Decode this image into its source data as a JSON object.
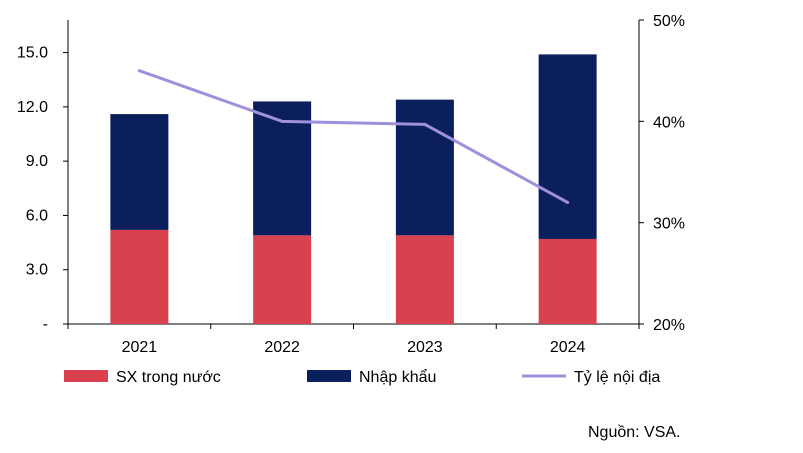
{
  "chart_data": {
    "type": "bar",
    "stacked": true,
    "categories": [
      "2021",
      "2022",
      "2023",
      "2024"
    ],
    "series": [
      {
        "name": "SX trong nước",
        "kind": "bar",
        "axis": "left",
        "color": "#d9414f",
        "values": [
          5.2,
          4.9,
          4.9,
          4.7
        ]
      },
      {
        "name": "Nhập khẩu",
        "kind": "bar",
        "axis": "left",
        "color": "#0b1f5c",
        "values": [
          6.4,
          7.4,
          7.5,
          10.2
        ]
      },
      {
        "name": "Tỷ lệ nội địa",
        "kind": "line",
        "axis": "right",
        "color": "#a08fdc",
        "values": [
          45,
          40,
          39.7,
          32
        ]
      }
    ],
    "y_left": {
      "min": 0,
      "max": 16.8,
      "ticks": [
        {
          "value": 0,
          "label": "-"
        },
        {
          "value": 3,
          "label": "3.0"
        },
        {
          "value": 6,
          "label": "6.0"
        },
        {
          "value": 9,
          "label": "9.0"
        },
        {
          "value": 12,
          "label": "12.0"
        },
        {
          "value": 15,
          "label": "15.0"
        }
      ]
    },
    "y_right": {
      "min": 20,
      "max": 50,
      "ticks": [
        {
          "value": 20,
          "label": "20%"
        },
        {
          "value": 30,
          "label": "30%"
        },
        {
          "value": 40,
          "label": "40%"
        },
        {
          "value": 50,
          "label": "50%"
        }
      ]
    },
    "grid": false,
    "legend_position": "bottom"
  },
  "source_note": "Nguồn: VSA."
}
